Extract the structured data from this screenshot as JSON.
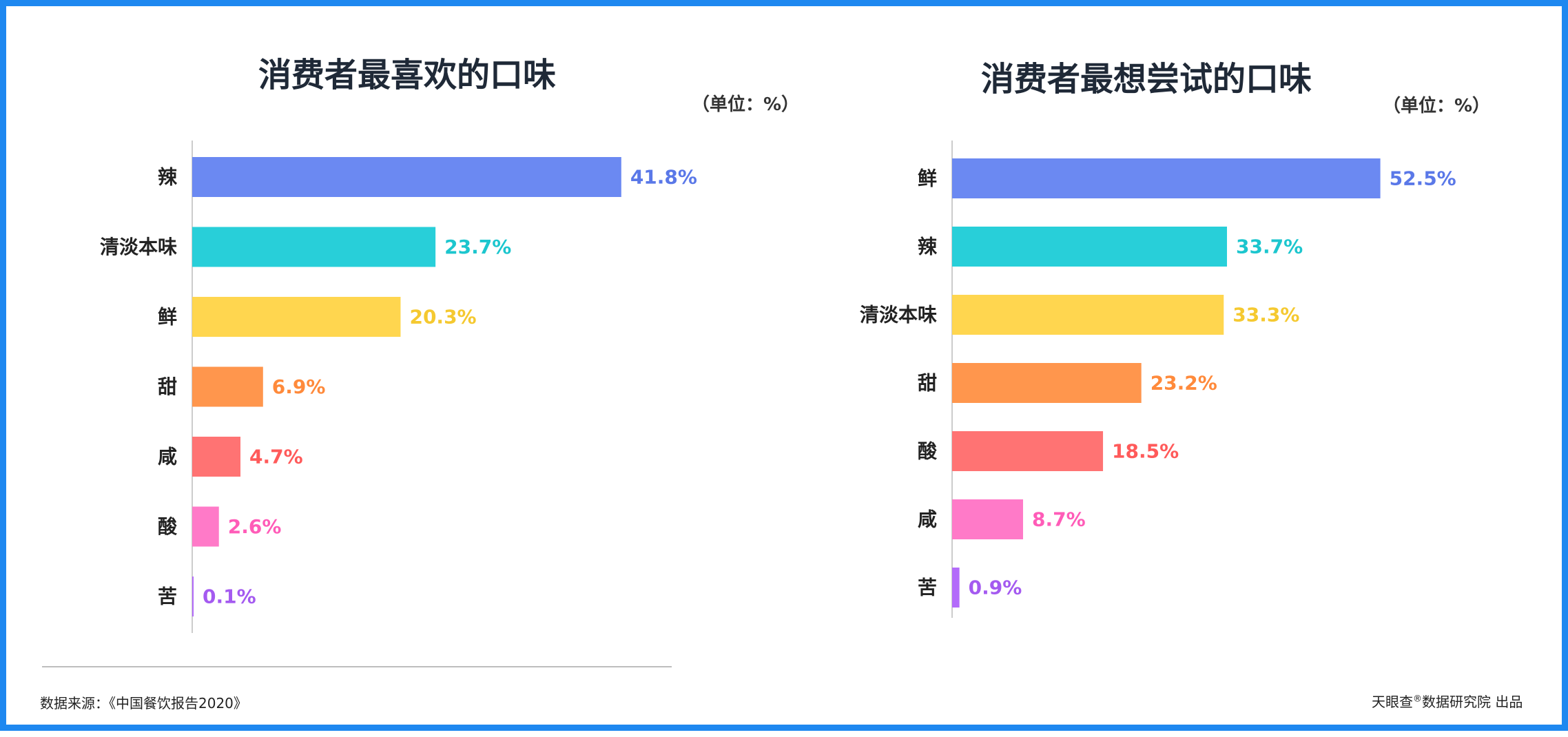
{
  "chart_data": [
    {
      "type": "bar",
      "orientation": "horizontal",
      "title": "消费者最喜欢的口味",
      "unit": "（单位：%）",
      "categories": [
        "辣",
        "清淡本味",
        "鲜",
        "甜",
        "咸",
        "酸",
        "苦"
      ],
      "values": [
        41.8,
        23.7,
        20.3,
        6.9,
        4.7,
        2.6,
        0.1
      ],
      "labels": [
        "41.8%",
        "23.7%",
        "20.3%",
        "6.9%",
        "4.7%",
        "2.6%",
        "0.1%"
      ],
      "bar_colors": [
        "#6B89F2",
        "#28CFD9",
        "#FFD64F",
        "#FF964D",
        "#FF7373",
        "#FF7AC8",
        "#B36BFA"
      ],
      "label_colors": [
        "#5A78E8",
        "#1CC6CE",
        "#F5C930",
        "#FF8A3B",
        "#FF5A5A",
        "#FF5CB8",
        "#A45AF0"
      ],
      "xlim": [
        0,
        45
      ]
    },
    {
      "type": "bar",
      "orientation": "horizontal",
      "title": "消费者最想尝试的口味",
      "unit": "（单位：%）",
      "categories": [
        "鲜",
        "辣",
        "清淡本味",
        "甜",
        "酸",
        "咸",
        "苦"
      ],
      "values": [
        52.5,
        33.7,
        33.3,
        23.2,
        18.5,
        8.7,
        0.9
      ],
      "labels": [
        "52.5%",
        "33.7%",
        "33.3%",
        "23.2%",
        "18.5%",
        "8.7%",
        "0.9%"
      ],
      "bar_colors": [
        "#6B89F2",
        "#28CFD9",
        "#FFD64F",
        "#FF964D",
        "#FF7373",
        "#FF7AC8",
        "#B36BFA"
      ],
      "label_colors": [
        "#5A78E8",
        "#1CC6CE",
        "#F5C930",
        "#FF8A3B",
        "#FF5A5A",
        "#FF5CB8",
        "#A45AF0"
      ],
      "xlim": [
        0,
        60
      ]
    }
  ],
  "footer": {
    "source": "数据来源：《中国餐饮报告2020》",
    "brand": "天眼查",
    "reg_mark": "®",
    "publisher_suffix": "数据研究院 出品"
  },
  "colors": {
    "frame": "#1E88F0",
    "axis": "#cccccc"
  }
}
